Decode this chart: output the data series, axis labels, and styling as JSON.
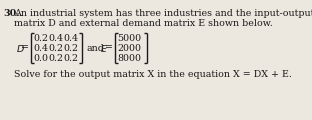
{
  "title_num": "30.",
  "line1": "An industrial system has three industries and the input-output",
  "line2": "matrix D and external demand matrix E shown below.",
  "D_rows": [
    [
      "0.2",
      "0.4",
      "0.4"
    ],
    [
      "0.4",
      "0.2",
      "0.2"
    ],
    [
      "0.0",
      "0.2",
      "0.2"
    ]
  ],
  "E_rows": [
    "5000",
    "2000",
    "8000"
  ],
  "solve_line": "Solve for the output matrix X in the equation X = DX + E.",
  "bg_color": "#ede8df",
  "text_color": "#1a1a1a",
  "font_size_body": 6.8,
  "font_size_matrix": 6.8
}
